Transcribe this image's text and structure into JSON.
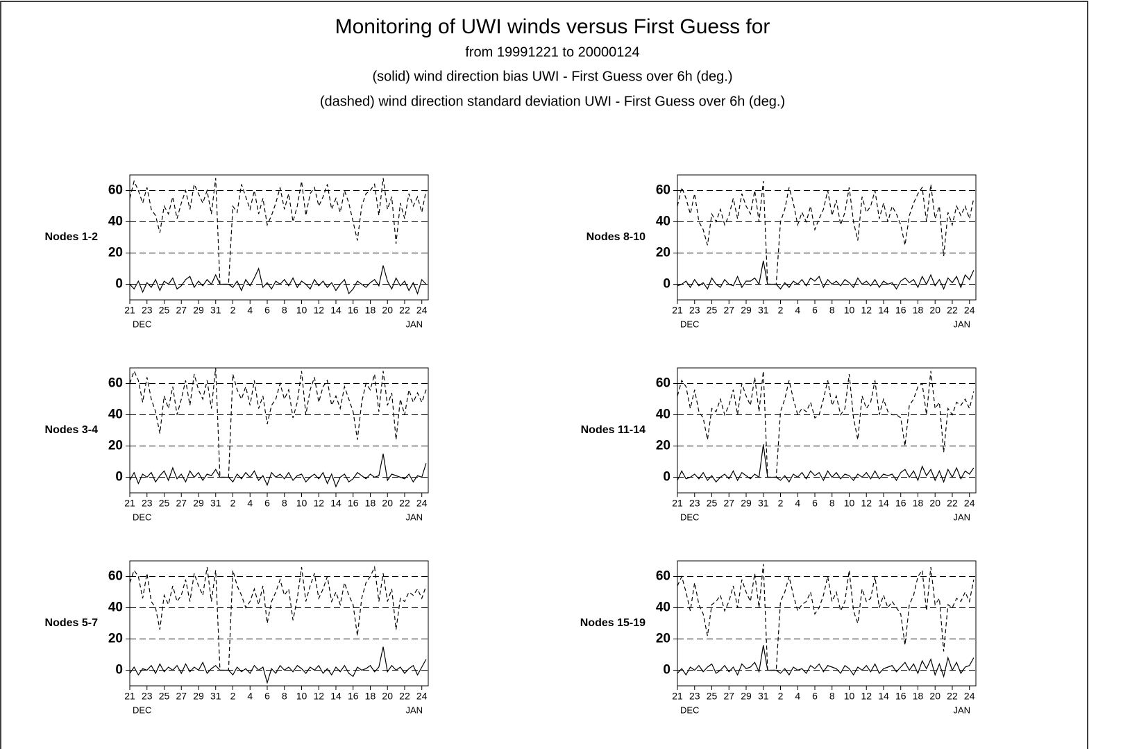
{
  "header": {
    "title": "Monitoring of UWI winds versus First Guess for",
    "subtitles": [
      "from 19991221 to 20000124",
      "(solid) wind direction bias UWI - First Guess over 6h (deg.)",
      "(dashed) wind direction standard deviation UWI - First Guess over 6h (deg.)"
    ]
  },
  "axis": {
    "xlim": [
      0,
      69.5
    ],
    "xticks": [
      {
        "value": 0,
        "label": "21"
      },
      {
        "value": 4,
        "label": "23"
      },
      {
        "value": 8,
        "label": "25"
      },
      {
        "value": 12,
        "label": "27"
      },
      {
        "value": 16,
        "label": "29"
      },
      {
        "value": 20,
        "label": "31"
      },
      {
        "value": 24,
        "label": "2"
      },
      {
        "value": 28,
        "label": "4"
      },
      {
        "value": 32,
        "label": "6"
      },
      {
        "value": 36,
        "label": "8"
      },
      {
        "value": 40,
        "label": "10"
      },
      {
        "value": 44,
        "label": "12"
      },
      {
        "value": 48,
        "label": "14"
      },
      {
        "value": 52,
        "label": "16"
      },
      {
        "value": 56,
        "label": "18"
      },
      {
        "value": 60,
        "label": "20"
      },
      {
        "value": 64,
        "label": "22"
      },
      {
        "value": 68,
        "label": "24"
      }
    ],
    "months": [
      "DEC",
      "JAN"
    ],
    "ylim": [
      -10,
      70
    ],
    "yticks": [
      0,
      20,
      40,
      60
    ],
    "grid": true
  },
  "chart_data": [
    {
      "type": "line",
      "label": "Nodes  1-2",
      "series": [
        {
          "style": "dashed",
          "color": "#000000",
          "values": [
            55,
            66,
            60,
            52,
            62,
            48,
            44,
            33,
            50,
            45,
            56,
            42,
            52,
            60,
            48,
            64,
            58,
            52,
            60,
            45,
            68,
            0,
            0,
            0,
            50,
            46,
            64,
            56,
            48,
            60,
            45,
            55,
            38,
            44,
            52,
            62,
            48,
            58,
            40,
            50,
            66,
            44,
            58,
            62,
            50,
            56,
            64,
            48,
            55,
            46,
            60,
            52,
            40,
            28,
            50,
            58,
            60,
            64,
            44,
            68,
            48,
            56,
            26,
            52,
            42,
            58,
            50,
            56,
            46,
            60
          ]
        },
        {
          "style": "solid",
          "color": "#000000",
          "values": [
            0,
            -3,
            2,
            -5,
            1,
            -2,
            3,
            -4,
            2,
            0,
            4,
            -3,
            -1,
            3,
            5,
            -2,
            2,
            -1,
            3,
            0,
            6,
            0,
            0,
            0,
            -2,
            2,
            -4,
            3,
            -1,
            4,
            10,
            -2,
            1,
            -3,
            2,
            0,
            3,
            -1,
            4,
            -2,
            2,
            0,
            -3,
            3,
            -1,
            2,
            -2,
            1,
            -4,
            0,
            3,
            -6,
            -3,
            2,
            0,
            -2,
            1,
            3,
            -1,
            12,
            2,
            -3,
            4,
            -1,
            2,
            -4,
            1,
            -6,
            3,
            0
          ]
        }
      ]
    },
    {
      "type": "line",
      "label": "Nodes  8-10",
      "series": [
        {
          "style": "dashed",
          "color": "#000000",
          "values": [
            50,
            62,
            55,
            45,
            58,
            40,
            35,
            25,
            45,
            40,
            48,
            38,
            44,
            55,
            42,
            58,
            50,
            45,
            60,
            40,
            66,
            0,
            0,
            0,
            40,
            48,
            62,
            52,
            38,
            46,
            40,
            50,
            35,
            42,
            48,
            60,
            44,
            54,
            38,
            46,
            62,
            40,
            28,
            56,
            46,
            50,
            60,
            42,
            52,
            40,
            50,
            45,
            38,
            25,
            44,
            52,
            58,
            62,
            40,
            64,
            42,
            50,
            18,
            46,
            38,
            50,
            44,
            50,
            42,
            55
          ]
        },
        {
          "style": "solid",
          "color": "#000000",
          "values": [
            -1,
            0,
            2,
            -2,
            3,
            -1,
            1,
            -3,
            4,
            0,
            -2,
            3,
            0,
            -1,
            5,
            -2,
            2,
            2,
            4,
            0,
            15,
            0,
            0,
            0,
            -3,
            1,
            -2,
            2,
            0,
            3,
            -1,
            4,
            2,
            5,
            -2,
            3,
            0,
            2,
            -1,
            3,
            1,
            -2,
            4,
            0,
            2,
            -1,
            3,
            -2,
            2,
            0,
            1,
            -3,
            2,
            4,
            1,
            3,
            -2,
            5,
            0,
            6,
            -1,
            3,
            -3,
            4,
            1,
            5,
            -2,
            6,
            3,
            9
          ]
        }
      ]
    },
    {
      "type": "line",
      "label": "Nodes  3-4",
      "series": [
        {
          "style": "dashed",
          "color": "#000000",
          "values": [
            60,
            68,
            62,
            48,
            64,
            50,
            42,
            28,
            52,
            44,
            58,
            40,
            50,
            62,
            46,
            66,
            56,
            50,
            62,
            44,
            70,
            0,
            0,
            0,
            66,
            56,
            50,
            58,
            46,
            62,
            44,
            52,
            34,
            46,
            50,
            60,
            50,
            56,
            38,
            48,
            68,
            40,
            56,
            64,
            48,
            58,
            62,
            46,
            52,
            44,
            58,
            50,
            42,
            24,
            48,
            60,
            56,
            66,
            42,
            68,
            46,
            54,
            24,
            50,
            40,
            56,
            48,
            54,
            48,
            56
          ]
        },
        {
          "style": "solid",
          "color": "#000000",
          "values": [
            -2,
            3,
            -4,
            2,
            0,
            3,
            -3,
            1,
            4,
            -2,
            6,
            -1,
            2,
            -3,
            4,
            0,
            3,
            -2,
            2,
            1,
            5,
            0,
            0,
            0,
            -3,
            2,
            -1,
            3,
            0,
            4,
            -2,
            1,
            -5,
            3,
            0,
            2,
            -1,
            3,
            -2,
            1,
            2,
            -3,
            0,
            2,
            -1,
            3,
            -4,
            2,
            -6,
            0,
            2,
            -3,
            -1,
            3,
            1,
            -1,
            2,
            0,
            1,
            15,
            -2,
            2,
            1,
            0,
            -1,
            2,
            -3,
            1,
            0,
            9
          ]
        }
      ]
    },
    {
      "type": "line",
      "label": "Nodes 11-14",
      "series": [
        {
          "style": "dashed",
          "color": "#000000",
          "values": [
            52,
            62,
            58,
            44,
            56,
            42,
            38,
            24,
            44,
            42,
            50,
            40,
            46,
            56,
            40,
            60,
            52,
            46,
            64,
            42,
            68,
            0,
            0,
            0,
            42,
            50,
            62,
            50,
            40,
            44,
            42,
            48,
            38,
            40,
            50,
            62,
            46,
            52,
            40,
            44,
            66,
            38,
            24,
            52,
            44,
            48,
            62,
            40,
            50,
            42,
            40,
            40,
            38,
            20,
            46,
            50,
            58,
            60,
            40,
            68,
            44,
            48,
            16,
            44,
            40,
            48,
            46,
            50,
            44,
            55
          ]
        },
        {
          "style": "solid",
          "color": "#000000",
          "values": [
            -2,
            4,
            -1,
            0,
            2,
            -1,
            3,
            -2,
            1,
            -3,
            0,
            2,
            -1,
            4,
            -2,
            3,
            1,
            -1,
            2,
            0,
            21,
            0,
            0,
            0,
            -2,
            1,
            -3,
            2,
            0,
            3,
            -1,
            4,
            1,
            3,
            -2,
            4,
            0,
            3,
            -1,
            2,
            1,
            -2,
            2,
            0,
            3,
            -1,
            4,
            -1,
            2,
            1,
            2,
            -2,
            3,
            5,
            0,
            4,
            -2,
            7,
            1,
            5,
            -2,
            4,
            -3,
            5,
            0,
            6,
            -1,
            4,
            2,
            6
          ]
        }
      ]
    },
    {
      "type": "line",
      "label": "Nodes  5-7",
      "series": [
        {
          "style": "dashed",
          "color": "#000000",
          "values": [
            56,
            64,
            60,
            46,
            62,
            44,
            40,
            26,
            48,
            42,
            54,
            44,
            48,
            58,
            44,
            62,
            54,
            48,
            66,
            44,
            64,
            0,
            0,
            0,
            64,
            54,
            48,
            40,
            44,
            52,
            42,
            54,
            30,
            44,
            50,
            58,
            48,
            52,
            32,
            46,
            66,
            44,
            54,
            62,
            46,
            52,
            60,
            44,
            50,
            42,
            56,
            48,
            42,
            22,
            46,
            56,
            60,
            66,
            44,
            62,
            44,
            52,
            26,
            46,
            44,
            50,
            48,
            52,
            46,
            54
          ]
        },
        {
          "style": "solid",
          "color": "#000000",
          "values": [
            -2,
            2,
            -3,
            1,
            0,
            3,
            -2,
            4,
            -1,
            2,
            0,
            3,
            -2,
            4,
            -1,
            2,
            0,
            5,
            -2,
            1,
            3,
            0,
            0,
            0,
            -3,
            2,
            -1,
            1,
            -2,
            3,
            0,
            2,
            -8,
            1,
            -2,
            3,
            0,
            2,
            -1,
            3,
            1,
            -2,
            2,
            0,
            3,
            -2,
            1,
            -3,
            2,
            -1,
            3,
            -2,
            -4,
            2,
            0,
            1,
            3,
            -1,
            2,
            15,
            -1,
            3,
            0,
            2,
            -2,
            1,
            3,
            -3,
            2,
            7
          ]
        }
      ]
    },
    {
      "type": "line",
      "label": "Nodes 15-19",
      "series": [
        {
          "style": "dashed",
          "color": "#000000",
          "values": [
            54,
            60,
            50,
            38,
            56,
            42,
            36,
            22,
            42,
            44,
            48,
            38,
            44,
            54,
            40,
            58,
            50,
            44,
            62,
            40,
            68,
            0,
            0,
            0,
            44,
            50,
            60,
            48,
            38,
            42,
            44,
            50,
            36,
            40,
            48,
            60,
            44,
            50,
            38,
            44,
            64,
            38,
            30,
            52,
            44,
            46,
            60,
            40,
            48,
            40,
            44,
            40,
            36,
            16,
            42,
            48,
            60,
            64,
            38,
            66,
            42,
            46,
            12,
            42,
            40,
            46,
            44,
            50,
            44,
            58
          ]
        },
        {
          "style": "solid",
          "color": "#000000",
          "values": [
            -2,
            1,
            -3,
            2,
            0,
            3,
            -1,
            2,
            4,
            -2,
            0,
            3,
            -1,
            2,
            -3,
            4,
            1,
            2,
            5,
            -1,
            16,
            0,
            0,
            0,
            -2,
            1,
            -3,
            2,
            0,
            1,
            -2,
            3,
            1,
            4,
            -1,
            3,
            2,
            1,
            -2,
            3,
            1,
            -3,
            2,
            0,
            3,
            -1,
            4,
            -2,
            1,
            2,
            3,
            -1,
            2,
            5,
            0,
            4,
            -2,
            6,
            1,
            7,
            -3,
            4,
            -4,
            8,
            0,
            5,
            -2,
            2,
            3,
            8
          ]
        }
      ]
    }
  ]
}
